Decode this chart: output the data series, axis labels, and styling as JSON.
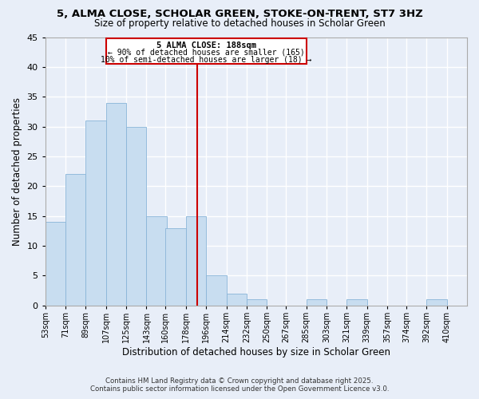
{
  "title1": "5, ALMA CLOSE, SCHOLAR GREEN, STOKE-ON-TRENT, ST7 3HZ",
  "title2": "Size of property relative to detached houses in Scholar Green",
  "xlabel": "Distribution of detached houses by size in Scholar Green",
  "ylabel": "Number of detached properties",
  "bar_color": "#c8ddf0",
  "bar_edge_color": "#89b4d8",
  "background_color": "#e8eef8",
  "grid_color": "#ffffff",
  "bin_labels": [
    "53sqm",
    "71sqm",
    "89sqm",
    "107sqm",
    "125sqm",
    "143sqm",
    "160sqm",
    "178sqm",
    "196sqm",
    "214sqm",
    "232sqm",
    "250sqm",
    "267sqm",
    "285sqm",
    "303sqm",
    "321sqm",
    "339sqm",
    "357sqm",
    "374sqm",
    "392sqm",
    "410sqm"
  ],
  "bin_edges": [
    53,
    71,
    89,
    107,
    125,
    143,
    160,
    178,
    196,
    214,
    232,
    250,
    267,
    285,
    303,
    321,
    339,
    357,
    374,
    392,
    410
  ],
  "bar_heights": [
    14,
    22,
    31,
    34,
    30,
    15,
    13,
    15,
    5,
    2,
    1,
    0,
    0,
    1,
    0,
    1,
    0,
    0,
    0,
    1
  ],
  "vline_x": 188,
  "vline_color": "#cc0000",
  "annotation_title": "5 ALMA CLOSE: 188sqm",
  "annotation_line1": "← 90% of detached houses are smaller (165)",
  "annotation_line2": "10% of semi-detached houses are larger (18) →",
  "ylim": [
    0,
    45
  ],
  "yticks": [
    0,
    5,
    10,
    15,
    20,
    25,
    30,
    35,
    40,
    45
  ],
  "footnote1": "Contains HM Land Registry data © Crown copyright and database right 2025.",
  "footnote2": "Contains public sector information licensed under the Open Government Licence v3.0."
}
